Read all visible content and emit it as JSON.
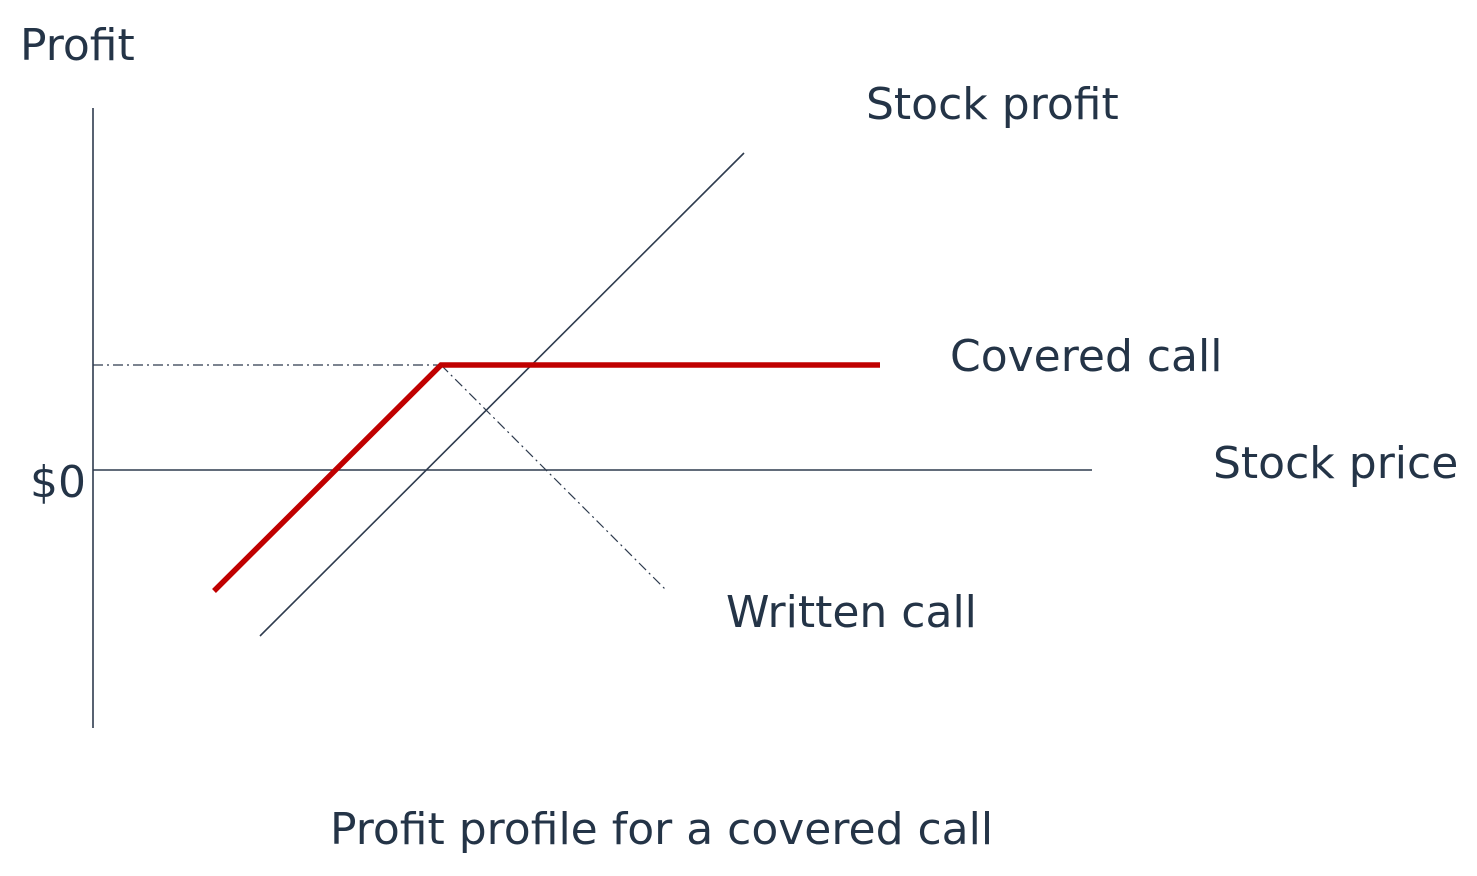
{
  "diagram": {
    "y_axis_label": "Profit",
    "x_axis_label": "Stock price",
    "zero_label": "$0",
    "caption": "Profit profile for a covered call",
    "lines": {
      "stock_profit": {
        "label": "Stock profit",
        "color": "#2e3b4e",
        "style": "solid"
      },
      "covered_call": {
        "label": "Covered call",
        "color": "#c00000",
        "style": "solid-thick"
      },
      "written_call": {
        "label": "Written call",
        "color": "#2e3b4e",
        "style": "dash-dot"
      },
      "max_profit_level": {
        "label": "",
        "color": "#2e3b4e",
        "style": "dash-dot"
      }
    },
    "text_color": "#243447",
    "axis_color": "#2e3b4e"
  }
}
